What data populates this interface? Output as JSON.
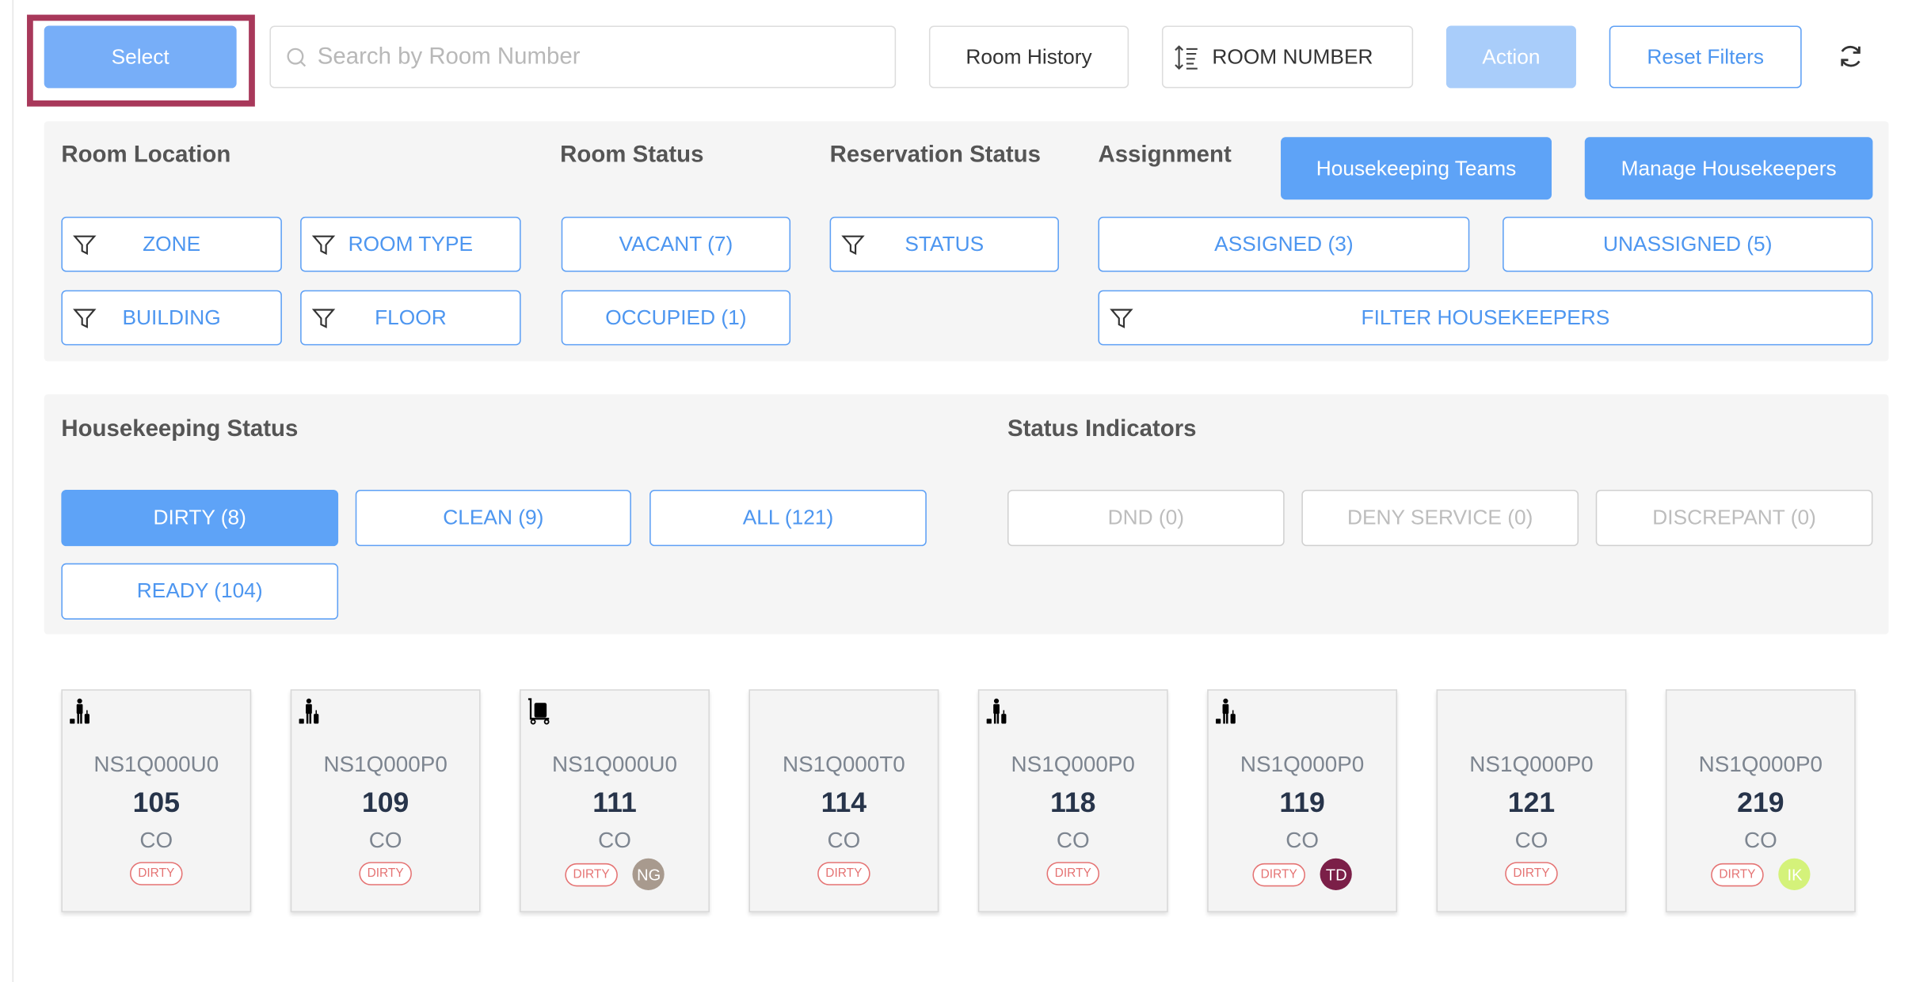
{
  "toolbar": {
    "select_label": "Select",
    "search_placeholder": "Search by Room Number",
    "room_history_label": "Room History",
    "sort_label": "ROOM NUMBER",
    "action_label": "Action",
    "reset_filters_label": "Reset Filters"
  },
  "filters": {
    "room_location": {
      "title": "Room Location",
      "zone": "ZONE",
      "room_type": "ROOM TYPE",
      "building": "BUILDING",
      "floor": "FLOOR"
    },
    "room_status": {
      "title": "Room Status",
      "vacant": "VACANT (7)",
      "occupied": "OCCUPIED (1)"
    },
    "reservation_status": {
      "title": "Reservation Status",
      "status": "STATUS"
    },
    "assignment": {
      "title": "Assignment",
      "housekeeping_teams": "Housekeeping Teams",
      "manage_housekeepers": "Manage Housekeepers",
      "assigned": "ASSIGNED (3)",
      "unassigned": "UNASSIGNED (5)",
      "filter_housekeepers": "FILTER HOUSEKEEPERS"
    }
  },
  "housekeeping": {
    "title": "Housekeeping Status",
    "dirty": "DIRTY (8)",
    "clean": "CLEAN (9)",
    "all": "ALL (121)",
    "ready": "READY (104)",
    "selected": "DIRTY (8)"
  },
  "indicators": {
    "title": "Status Indicators",
    "dnd": "DND (0)",
    "deny_service": "DENY SERVICE (0)",
    "discrepant": "DISCREPANT (0)"
  },
  "colors": {
    "accent": "#5ea3f7",
    "highlight": "#a8385a",
    "dirty": "#e57373"
  },
  "rooms": [
    {
      "icon": "guest-luggage-icon",
      "code": "NS1Q000U0",
      "number": "105",
      "status": "CO",
      "hk": "DIRTY"
    },
    {
      "icon": "guest-luggage-icon",
      "code": "NS1Q000P0",
      "number": "109",
      "status": "CO",
      "hk": "DIRTY"
    },
    {
      "icon": "luggage-cart-icon",
      "code": "NS1Q000U0",
      "number": "111",
      "status": "CO",
      "hk": "DIRTY",
      "assignee": "NG",
      "assignee_color": "#a89a8e"
    },
    {
      "icon": "",
      "code": "NS1Q000T0",
      "number": "114",
      "status": "CO",
      "hk": "DIRTY"
    },
    {
      "icon": "guest-luggage-icon",
      "code": "NS1Q000P0",
      "number": "118",
      "status": "CO",
      "hk": "DIRTY"
    },
    {
      "icon": "guest-luggage-icon",
      "code": "NS1Q000P0",
      "number": "119",
      "status": "CO",
      "hk": "DIRTY",
      "assignee": "TD",
      "assignee_color": "#7b1f48"
    },
    {
      "icon": "",
      "code": "NS1Q000P0",
      "number": "121",
      "status": "CO",
      "hk": "DIRTY"
    },
    {
      "icon": "",
      "code": "NS1Q000P0",
      "number": "219",
      "status": "CO",
      "hk": "DIRTY",
      "assignee": "IK",
      "assignee_color": "#d4f27a"
    }
  ]
}
